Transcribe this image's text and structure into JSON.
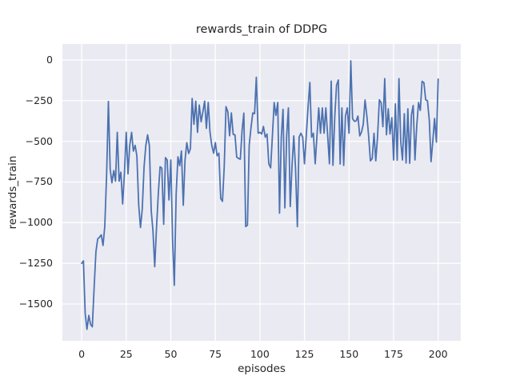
{
  "chart_data": {
    "type": "line",
    "title": "rewards_train of DDPG",
    "xlabel": "episodes",
    "ylabel": "rewards_train",
    "x_ticks": [
      0,
      25,
      50,
      75,
      100,
      125,
      150,
      175,
      200
    ],
    "y_ticks": [
      0,
      -250,
      -500,
      -750,
      -1000,
      -1250,
      -1500
    ],
    "xlim": [
      -10.8,
      212.7
    ],
    "ylim": [
      -1726,
      98
    ],
    "grid": "on",
    "legend": "none",
    "colors": {
      "line": "#4c72b0",
      "plot_background": "#eaeaf2",
      "grid": "#ffffff",
      "figure_background": "#ffffff",
      "text": "#262626"
    },
    "series": [
      {
        "name": "rewards_train",
        "x_range": [
          0,
          200
        ],
        "x_step": 1,
        "values": [
          -1250,
          -1235,
          -1560,
          -1655,
          -1570,
          -1625,
          -1640,
          -1395,
          -1180,
          -1100,
          -1090,
          -1075,
          -1140,
          -1020,
          -700,
          -255,
          -670,
          -755,
          -680,
          -745,
          -445,
          -745,
          -690,
          -885,
          -700,
          -445,
          -700,
          -525,
          -445,
          -560,
          -525,
          -590,
          -893,
          -1030,
          -918,
          -656,
          -525,
          -460,
          -525,
          -925,
          -1049,
          -1270,
          -1035,
          -820,
          -656,
          -665,
          -1010,
          -600,
          -615,
          -860,
          -615,
          -1100,
          -1385,
          -825,
          -595,
          -650,
          -560,
          -893,
          -615,
          -508,
          -575,
          -545,
          -237,
          -395,
          -253,
          -445,
          -277,
          -380,
          -318,
          -253,
          -420,
          -261,
          -445,
          -525,
          -573,
          -508,
          -589,
          -573,
          -852,
          -869,
          -655,
          -287,
          -319,
          -466,
          -326,
          -458,
          -460,
          -597,
          -605,
          -610,
          -434,
          -327,
          -1024,
          -1016,
          -525,
          -418,
          -326,
          -330,
          -107,
          -450,
          -445,
          -455,
          -409,
          -475,
          -455,
          -638,
          -663,
          -467,
          -262,
          -340,
          -262,
          -942,
          -475,
          -303,
          -909,
          -467,
          -295,
          -901,
          -655,
          -467,
          -663,
          -1025,
          -475,
          -450,
          -475,
          -638,
          -467,
          -295,
          -138,
          -475,
          -450,
          -638,
          -467,
          -295,
          -450,
          -295,
          -450,
          -295,
          -467,
          -638,
          -130,
          -648,
          -345,
          -155,
          -123,
          -640,
          -295,
          -648,
          -345,
          -295,
          -450,
          -5,
          -360,
          -377,
          -375,
          -345,
          -467,
          -443,
          -395,
          -246,
          -345,
          -467,
          -620,
          -606,
          -450,
          -620,
          -475,
          -245,
          -262,
          -410,
          -115,
          -460,
          -300,
          -455,
          -355,
          -615,
          -270,
          -616,
          -115,
          -500,
          -615,
          -330,
          -633,
          -300,
          -635,
          -337,
          -280,
          -615,
          -400,
          -262,
          -310,
          -131,
          -140,
          -245,
          -250,
          -370,
          -625,
          -500,
          -360,
          -505,
          -118
        ]
      }
    ]
  }
}
